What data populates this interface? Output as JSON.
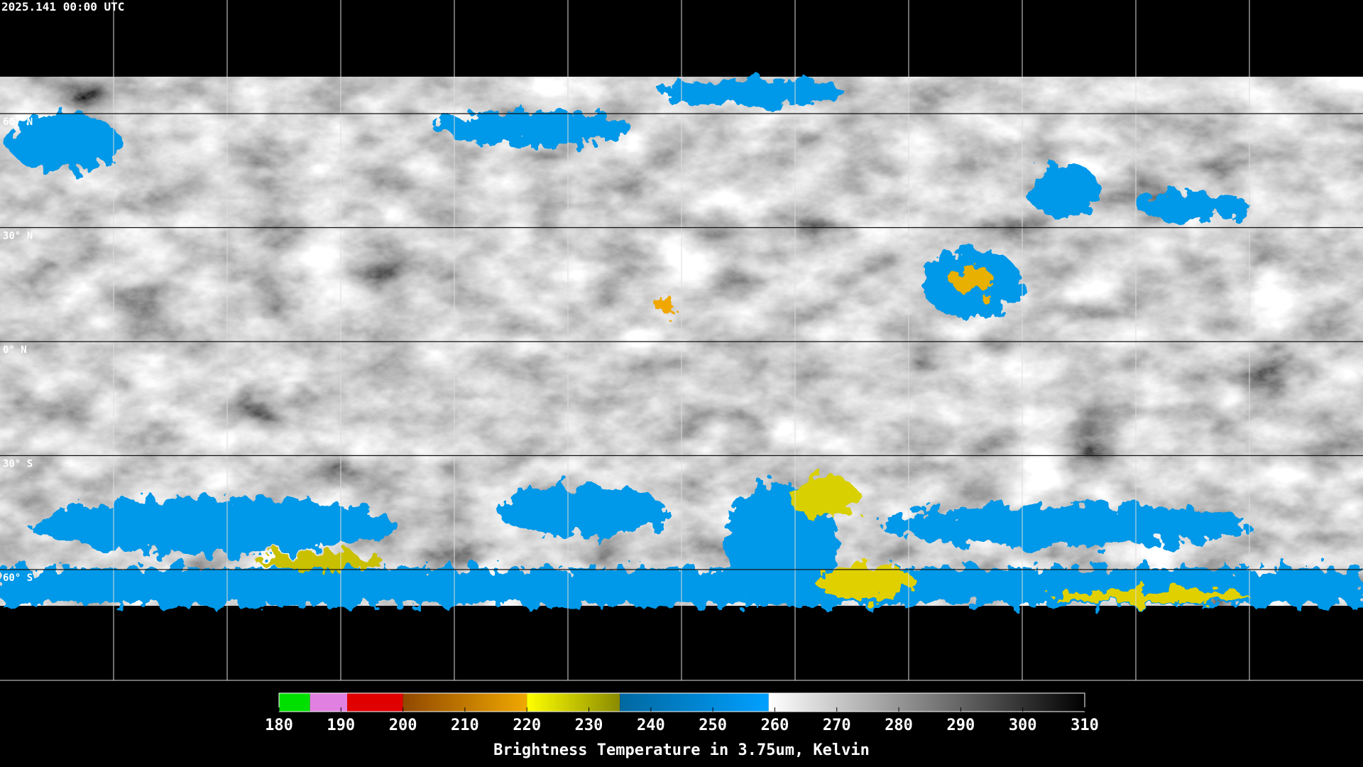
{
  "timestamp": "2025.141 00:00 UTC",
  "lat_labels": [
    {
      "value": 60,
      "label": "60° N"
    },
    {
      "value": 30,
      "label": "30° N"
    },
    {
      "value": 0,
      "label": "0° N"
    },
    {
      "value": -30,
      "label": "30° S"
    },
    {
      "value": -60,
      "label": "60° S"
    }
  ],
  "colorbar": {
    "title": "Brightness Temperature in 3.75um, Kelvin",
    "range": [
      180,
      310
    ],
    "ticks": [
      180,
      190,
      200,
      210,
      220,
      230,
      240,
      250,
      260,
      270,
      280,
      290,
      300,
      310
    ],
    "segments": [
      {
        "from": 180,
        "to": 185,
        "colors": [
          "#00e000",
          "#00e000"
        ]
      },
      {
        "from": 185,
        "to": 191,
        "colors": [
          "#e080e0",
          "#e080e0"
        ]
      },
      {
        "from": 191,
        "to": 200,
        "colors": [
          "#e00000",
          "#e00000"
        ]
      },
      {
        "from": 200,
        "to": 220,
        "colors": [
          "#904800",
          "#f0a800"
        ]
      },
      {
        "from": 220,
        "to": 235,
        "colors": [
          "#ffff00",
          "#8a8a00"
        ]
      },
      {
        "from": 235,
        "to": 259,
        "colors": [
          "#0068a0",
          "#00a0ff"
        ]
      },
      {
        "from": 259,
        "to": 310,
        "colors": [
          "#ffffff",
          "#000000"
        ]
      }
    ]
  }
}
